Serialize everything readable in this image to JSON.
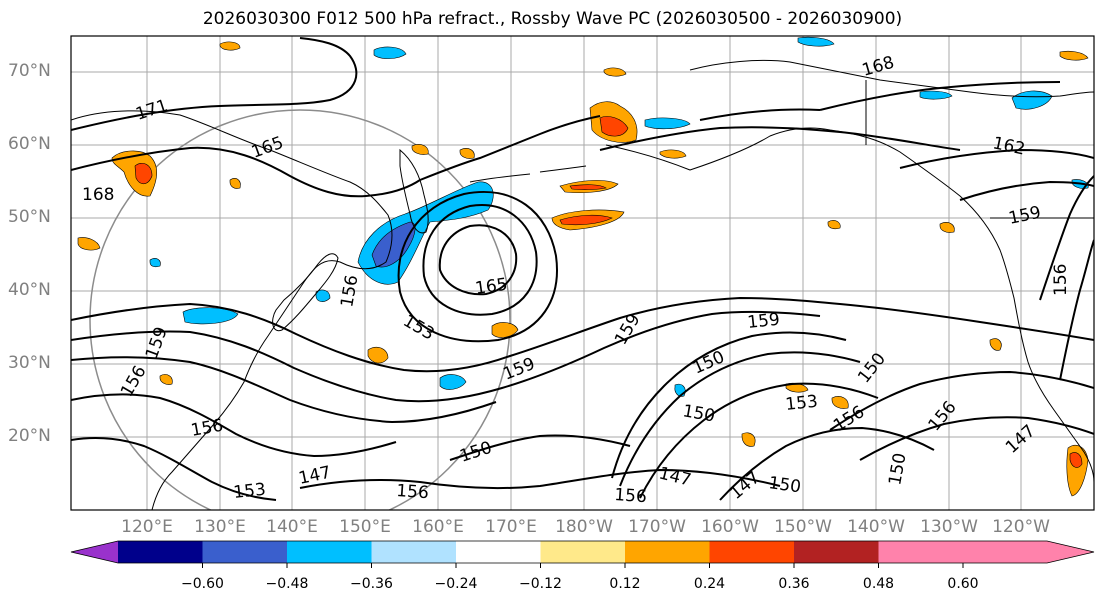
{
  "title": "2026030300 F012 500 hPa refract., Rossby Wave PC (2026030500 - 2026030900)",
  "lat_labels": [
    "70°N",
    "60°N",
    "50°N",
    "40°N",
    "30°N",
    "20°N"
  ],
  "lon_labels": [
    "120°E",
    "130°E",
    "140°E",
    "150°E",
    "160°E",
    "170°E",
    "180°W",
    "170°W",
    "160°W",
    "150°W",
    "140°W",
    "130°W",
    "120°W"
  ],
  "colorbar": {
    "colors": [
      "#9932cc",
      "#00008b",
      "#3a5fcd",
      "#00bfff",
      "#b0e2ff",
      "#ffffff",
      "#ffe98a",
      "#ffa500",
      "#ff4500",
      "#b22222",
      "#ff82ab"
    ],
    "tick_labels": [
      "−0.60",
      "−0.48",
      "−0.36",
      "−0.24",
      "−0.12",
      "0.12",
      "0.24",
      "0.36",
      "0.48",
      "0.60"
    ]
  },
  "contour_labels": [
    "171",
    "165",
    "168",
    "168",
    "162",
    "159",
    "156",
    "165",
    "153",
    "159",
    "159",
    "159",
    "150",
    "150",
    "150",
    "153",
    "156",
    "147",
    "150",
    "147",
    "147",
    "156",
    "156",
    "150",
    "153",
    "156",
    "150",
    "159",
    "156",
    "147",
    "156",
    "156"
  ]
}
